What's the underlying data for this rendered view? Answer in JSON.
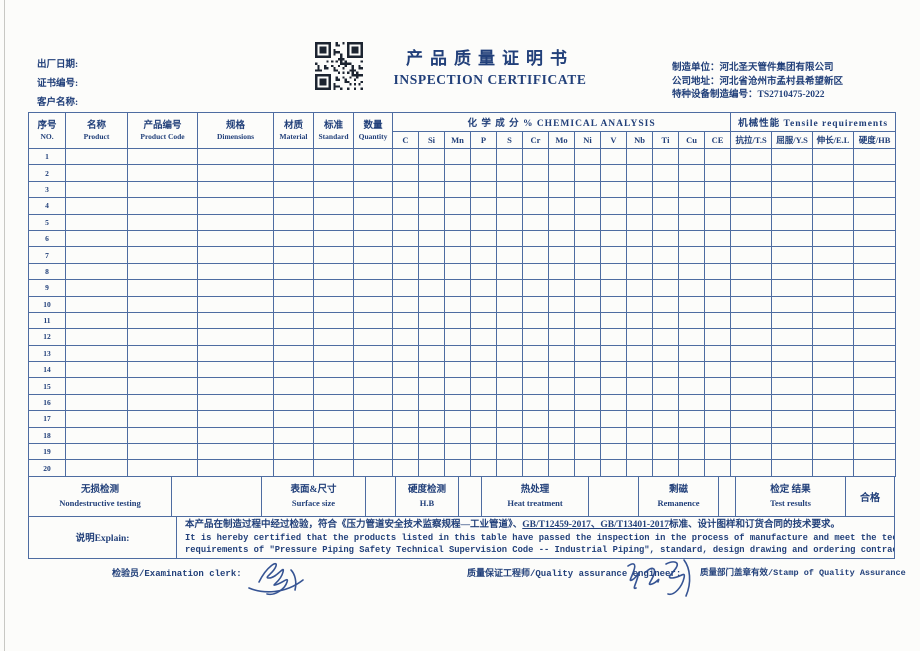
{
  "colors": {
    "ink_navy": "#22407a",
    "line_blue": "#4e6ca1",
    "qr_black": "#1c2430"
  },
  "meta": {
    "fields": [
      {
        "label": "出厂日期:"
      },
      {
        "label": "证书编号:"
      },
      {
        "label": "客户名称:"
      }
    ]
  },
  "title": {
    "zh": "产品质量证明书",
    "en": "INSPECTION CERTIFICATE"
  },
  "manufacturer": {
    "line1": "制造单位：河北圣天管件集团有限公司",
    "line2": "公司地址：河北省沧州市孟村县希望新区",
    "line3": "特种设备制造编号：TS2710475-2022"
  },
  "table": {
    "columns_left": [
      {
        "zh": "序号",
        "en": "NO."
      },
      {
        "zh": "名称",
        "en": "Product"
      },
      {
        "zh": "产品编号",
        "en": "Product Code"
      },
      {
        "zh": "规格",
        "en": "Dimensions"
      },
      {
        "zh": "材质",
        "en": "Material"
      },
      {
        "zh": "标准",
        "en": "Standard"
      },
      {
        "zh": "数量",
        "en": "Quantity"
      }
    ],
    "chemical": {
      "header": "化 学 成 分 %   CHEMICAL ANALYSIS",
      "elements": [
        "C",
        "Si",
        "Mn",
        "P",
        "S",
        "Cr",
        "Mo",
        "Ni",
        "V",
        "Nb",
        "Ti",
        "Cu",
        "CE"
      ]
    },
    "mechanical": {
      "header": "机械性能  Tensile requirements",
      "columns": [
        "抗拉/T.S",
        "屈服/Y.S",
        "伸长/E.L",
        "硬度/HB"
      ]
    },
    "row_numbers": [
      "1",
      "2",
      "3",
      "4",
      "5",
      "6",
      "7",
      "8",
      "9",
      "10",
      "11",
      "12",
      "13",
      "14",
      "15",
      "16",
      "17",
      "18",
      "19",
      "20"
    ]
  },
  "summary": {
    "cells": [
      {
        "zh": "无损检测",
        "en": "Nondestructive testing"
      },
      {},
      {
        "zh": "表面&尺寸",
        "en": "Surface size"
      },
      {},
      {
        "zh": "硬度检测",
        "en": "H.B"
      },
      {},
      {
        "zh": "热处理",
        "en": "Heat treatment"
      },
      {},
      {
        "zh": "剩磁",
        "en": "Remanence"
      },
      {},
      {
        "zh": "检定 结果",
        "en": "Test results"
      },
      {
        "zh": "合格",
        "single": true
      }
    ]
  },
  "explain": {
    "label": "说明Explain:",
    "zh_pre": "本产品在制造过程中经过检验，符合《压力管道安全技术监察规程—工业管道》、",
    "zh_underline": "GB/T12459-2017、GB/T13401-2017",
    "zh_post": "标准、设计图样和订货合同的技术要求。",
    "en_line1": "It is hereby certified that the products listed in this table have passed the inspection in the process of manufacture and meet the technical",
    "en_line2": "requirements of \"Pressure Piping Safety Technical Supervision Code -- Industrial Piping\", standard, design drawing and ordering contract."
  },
  "footer": {
    "clerk": "检验员/Examination clerk:",
    "engineer": "质量保证工程师/Quality assurance engineer:",
    "stamp": "质量部门盖章有效/Stamp of Quality Assurance"
  }
}
